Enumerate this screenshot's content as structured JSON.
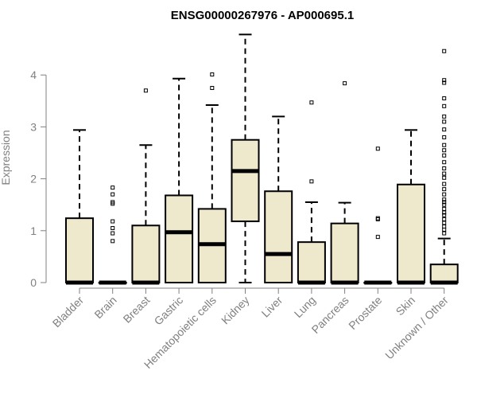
{
  "chart_data": {
    "type": "boxplot",
    "title": "ENSG00000267976 - AP000695.1",
    "ylabel": "Expression",
    "xlabel": "",
    "ylim": [
      0,
      4.8
    ],
    "yticks": [
      0,
      1,
      2,
      3,
      4
    ],
    "box_fill": "#EEE8CD",
    "categories": [
      "Bladder",
      "Brain",
      "Breast",
      "Gastric",
      "Hematopoietic cells",
      "Kidney",
      "Liver",
      "Lung",
      "Pancreas",
      "Prostate",
      "Skin",
      "Unknown / Other"
    ],
    "boxes": [
      {
        "q1": 0,
        "median": 0,
        "q3": 1.24,
        "whisker_low": 0,
        "whisker_high": 2.94,
        "outliers": []
      },
      {
        "q1": 0,
        "median": 0,
        "q3": 0,
        "whisker_low": 0,
        "whisker_high": 0,
        "outliers": [
          0.8,
          0.95,
          1.05,
          1.18,
          1.52,
          1.55,
          1.7,
          1.83
        ]
      },
      {
        "q1": 0,
        "median": 0,
        "q3": 1.1,
        "whisker_low": 0,
        "whisker_high": 2.65,
        "outliers": [
          3.7
        ]
      },
      {
        "q1": 0,
        "median": 0.97,
        "q3": 1.68,
        "whisker_low": 0,
        "whisker_high": 3.93,
        "outliers": []
      },
      {
        "q1": 0,
        "median": 0.74,
        "q3": 1.42,
        "whisker_low": 0,
        "whisker_high": 3.42,
        "outliers": [
          3.75,
          4.01
        ]
      },
      {
        "q1": 1.18,
        "median": 2.15,
        "q3": 2.75,
        "whisker_low": 0,
        "whisker_high": 4.78,
        "outliers": []
      },
      {
        "q1": 0,
        "median": 0.55,
        "q3": 1.76,
        "whisker_low": 0,
        "whisker_high": 3.2,
        "outliers": []
      },
      {
        "q1": 0,
        "median": 0,
        "q3": 0.78,
        "whisker_low": 0,
        "whisker_high": 1.55,
        "outliers": [
          1.95,
          3.47
        ]
      },
      {
        "q1": 0,
        "median": 0,
        "q3": 1.14,
        "whisker_low": 0,
        "whisker_high": 1.54,
        "outliers": [
          3.84
        ]
      },
      {
        "q1": 0,
        "median": 0,
        "q3": 0,
        "whisker_low": 0,
        "whisker_high": 0,
        "outliers": [
          0.88,
          1.22,
          1.24,
          2.58
        ]
      },
      {
        "q1": 0,
        "median": 0,
        "q3": 1.89,
        "whisker_low": 0,
        "whisker_high": 2.94,
        "outliers": []
      },
      {
        "q1": 0,
        "median": 0,
        "q3": 0.35,
        "whisker_low": 0,
        "whisker_high": 0.85,
        "outliers": [
          0.95,
          1.02,
          1.08,
          1.15,
          1.22,
          1.3,
          1.35,
          1.42,
          1.5,
          1.55,
          1.6,
          1.7,
          1.8,
          1.9,
          2.02,
          2.1,
          2.2,
          2.32,
          2.45,
          2.55,
          2.65,
          2.8,
          2.95,
          3.1,
          3.2,
          3.4,
          3.55,
          3.85,
          3.9,
          4.46
        ]
      }
    ]
  }
}
